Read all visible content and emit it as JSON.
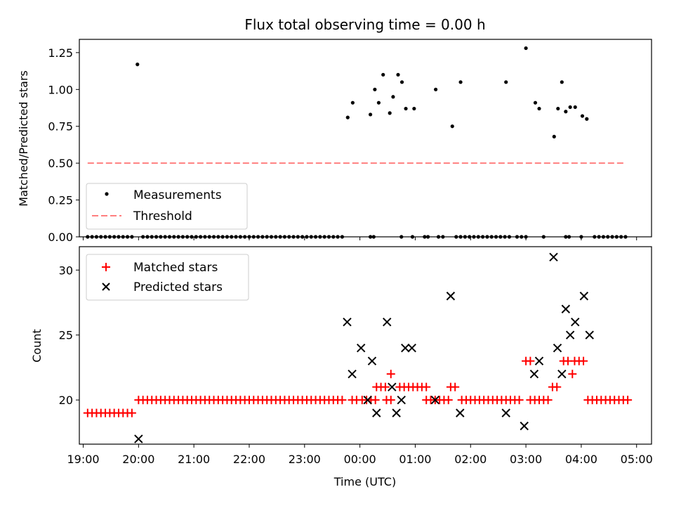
{
  "chart_data": [
    {
      "type": "scatter",
      "title": "Flux total observing time = 0.00 h",
      "ylabel": "Matched/Predicted stars",
      "xlabel": "",
      "xlim": [
        18.93,
        29.27
      ],
      "ylim": [
        0,
        1.34
      ],
      "yticks": [
        "0.00",
        "0.25",
        "0.50",
        "0.75",
        "1.00",
        "1.25"
      ],
      "ytick_values": [
        0,
        0.25,
        0.5,
        0.75,
        1.0,
        1.25
      ],
      "xtick_values": [
        19,
        20,
        21,
        22,
        23,
        24,
        25,
        26,
        27,
        28,
        29
      ],
      "legend": {
        "placement": "lower-left",
        "entries": [
          "Measurements",
          "Threshold"
        ]
      },
      "series": [
        {
          "name": "Measurements",
          "color": "#000000",
          "zero_x": [
            19.08,
            19.16,
            19.24,
            19.32,
            19.4,
            19.48,
            19.56,
            19.64,
            19.72,
            19.8,
            19.88,
            20.08,
            20.16,
            20.24,
            20.32,
            20.4,
            20.48,
            20.56,
            20.64,
            20.72,
            20.8,
            20.88,
            20.96,
            21.04,
            21.12,
            21.2,
            21.28,
            21.36,
            21.44,
            21.52,
            21.6,
            21.68,
            21.76,
            21.84,
            21.92,
            22.0,
            22.08,
            22.16,
            22.24,
            22.32,
            22.4,
            22.48,
            22.56,
            22.64,
            22.72,
            22.8,
            22.88,
            22.96,
            23.04,
            23.12,
            23.2,
            23.28,
            23.36,
            23.44,
            23.52,
            23.6,
            23.68,
            24.19,
            24.25,
            24.75,
            24.95,
            25.17,
            25.23,
            25.42,
            25.5,
            25.74,
            25.82,
            25.9,
            25.98,
            26.06,
            26.14,
            26.22,
            26.3,
            26.38,
            26.46,
            26.54,
            26.62,
            26.7,
            26.84,
            26.92,
            27.0,
            27.32,
            27.72,
            27.78,
            28.0,
            28.24,
            28.32,
            28.4,
            28.48,
            28.56,
            28.64,
            28.72,
            28.8
          ],
          "x": [
            19.98,
            23.78,
            23.87,
            24.19,
            24.27,
            24.34,
            24.42,
            24.54,
            24.6,
            24.69,
            24.76,
            24.83,
            24.98,
            25.37,
            25.67,
            25.82,
            26.64,
            27.0,
            27.17,
            27.24,
            27.51,
            27.58,
            27.65,
            27.72,
            27.8,
            27.89,
            28.02,
            28.1
          ],
          "y": [
            1.17,
            0.81,
            0.91,
            0.83,
            1.0,
            0.91,
            1.1,
            0.84,
            0.95,
            1.1,
            1.05,
            0.87,
            0.87,
            1.0,
            0.75,
            1.05,
            1.05,
            1.28,
            0.91,
            0.87,
            0.68,
            0.87,
            1.05,
            0.85,
            0.88,
            0.88,
            0.82,
            0.8
          ]
        },
        {
          "name": "Threshold",
          "color": "#ff7f7f",
          "x": [
            19.08,
            28.8
          ],
          "y": [
            0.5,
            0.5
          ]
        }
      ]
    },
    {
      "type": "scatter",
      "title": "",
      "ylabel": "Count",
      "xlabel": "Time (UTC)",
      "xlim": [
        18.93,
        29.27
      ],
      "ylim": [
        16.6,
        31.8
      ],
      "yticks": [
        "20",
        "25",
        "30"
      ],
      "ytick_values": [
        20,
        25,
        30
      ],
      "xticks": [
        "19:00",
        "20:00",
        "21:00",
        "22:00",
        "23:00",
        "00:00",
        "01:00",
        "02:00",
        "03:00",
        "04:00",
        "05:00"
      ],
      "xtick_values": [
        19,
        20,
        21,
        22,
        23,
        24,
        25,
        26,
        27,
        28,
        29
      ],
      "legend": {
        "placement": "upper-left",
        "entries": [
          "Matched stars",
          "Predicted stars"
        ]
      },
      "series": [
        {
          "name": "Matched stars",
          "color": "#ff0000",
          "groups": [
            {
              "x_from": 19.08,
              "x_to": 19.88,
              "step": 0.08,
              "y": 19
            },
            {
              "x_from": 20.0,
              "x_to": 23.68,
              "step": 0.08,
              "y": 20
            },
            {
              "x_from": 24.04,
              "x_to": 24.28,
              "step": 0.08,
              "y": 20
            },
            {
              "x_from": 25.2,
              "x_to": 25.6,
              "step": 0.08,
              "y": 20
            },
            {
              "x_from": 25.84,
              "x_to": 26.92,
              "step": 0.08,
              "y": 20
            },
            {
              "x_from": 27.08,
              "x_to": 27.4,
              "step": 0.08,
              "y": 20
            },
            {
              "x_from": 28.12,
              "x_to": 28.84,
              "step": 0.08,
              "y": 20
            }
          ],
          "extra_x": [
            23.86,
            23.94,
            24.48,
            24.56,
            24.3,
            24.38,
            24.46,
            24.72,
            24.8,
            24.88,
            24.96,
            25.04,
            25.12,
            25.2,
            25.64,
            25.72,
            24.56,
            27.48,
            27.56,
            27.0,
            27.08,
            27.68,
            27.76,
            27.88,
            27.96,
            28.04,
            27.84
          ],
          "extra_y": [
            20,
            20,
            20,
            20,
            21,
            21,
            21,
            21,
            21,
            21,
            21,
            21,
            21,
            21,
            21,
            21,
            22,
            21,
            21,
            23,
            23,
            23,
            23,
            23,
            23,
            23,
            22
          ]
        },
        {
          "name": "Predicted stars",
          "color": "#000000",
          "x": [
            20.0,
            23.77,
            23.86,
            24.02,
            24.14,
            24.22,
            24.3,
            24.49,
            24.58,
            24.66,
            24.75,
            24.82,
            24.94,
            25.36,
            25.64,
            25.81,
            26.64,
            26.97,
            27.15,
            27.24,
            27.5,
            27.57,
            27.65,
            27.72,
            27.8,
            27.89,
            28.05,
            28.15
          ],
          "y": [
            17,
            26,
            22,
            24,
            20,
            23,
            19,
            26,
            21,
            19,
            20,
            24,
            24,
            20,
            28,
            19,
            19,
            18,
            22,
            23,
            31,
            24,
            22,
            27,
            25,
            26,
            28,
            25
          ]
        }
      ]
    }
  ]
}
